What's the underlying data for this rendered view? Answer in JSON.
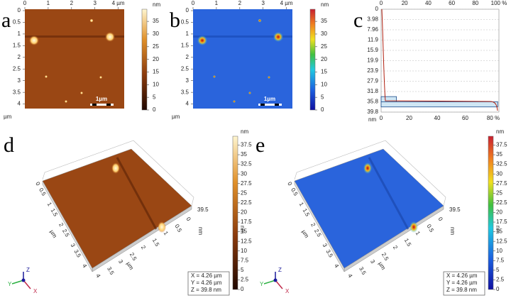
{
  "panels": [
    {
      "label": "a",
      "kind": "map2d",
      "colormap": "copper",
      "top_ticks": [
        "0",
        "1",
        "2",
        "3",
        "4 µm"
      ],
      "left_ticks": [
        "0",
        "0.5",
        "1",
        "1.5",
        "2",
        "2.5",
        "3",
        "3.5",
        "4"
      ],
      "axis_unit": "µm",
      "scale_bar": "1µm",
      "colorbar_unit": "nm",
      "colorbar_ticks": [
        0,
        5,
        10,
        15,
        20,
        25,
        30,
        35
      ],
      "colorbar_range": [
        0,
        39.8
      ]
    },
    {
      "label": "b",
      "kind": "map2d",
      "colormap": "rainbow",
      "top_ticks": [
        "0",
        "1",
        "2",
        "3",
        "4 µm"
      ],
      "left_ticks": [
        "0",
        "0.5",
        "1",
        "1.5",
        "2",
        "2.5",
        "3",
        "3.5",
        "4"
      ],
      "axis_unit": "µm",
      "scale_bar": "1µm",
      "colorbar_unit": "nm",
      "colorbar_ticks": [
        0,
        5,
        10,
        15,
        20,
        25,
        30,
        35
      ],
      "colorbar_range": [
        0,
        39.8
      ]
    },
    {
      "label": "c",
      "kind": "histogram",
      "top_ticks": [
        "0",
        "20",
        "40",
        "60",
        "80",
        "100 %"
      ],
      "left_ticks": [
        "0",
        "3.98",
        "7.96",
        "11.9",
        "15.9",
        "19.9",
        "23.9",
        "27.9",
        "31.8",
        "35.8",
        "39.8"
      ],
      "bottom_ticks": [
        "0",
        "20",
        "40",
        "60",
        "80 %"
      ],
      "left_unit": "nm",
      "bins": [
        33.8,
        35.8,
        37.8
      ],
      "values": [
        13,
        99
      ],
      "height_range": [
        0,
        39.8
      ],
      "percent_range": [
        0,
        100
      ]
    },
    {
      "label": "d",
      "kind": "map3d",
      "colormap": "copper",
      "left_ticks": [
        "0",
        "0.5",
        "1",
        "1.5",
        "2",
        "2.5",
        "3",
        "3.5",
        "4"
      ],
      "bottom_ticks": [
        "4",
        "3.5",
        "3",
        "2.5",
        "2",
        "1.5",
        "1",
        "0.5",
        "0"
      ],
      "axis_unit": "µm",
      "z_tick": "39.5",
      "z_unit": "nm",
      "colorbar_unit": "nm",
      "colorbar_title": "nm",
      "colorbar_ticks": [
        0,
        2.5,
        5,
        7.5,
        10,
        12.5,
        15,
        17.5,
        20,
        22.5,
        25,
        27.5,
        30,
        32.5,
        35,
        37.5
      ],
      "colorbar_range": [
        0,
        39.8
      ],
      "info": [
        "X = 4.26 µm",
        "Y = 4.26 µm",
        "Z = 39.8 nm"
      ],
      "axes_labels": [
        "Z",
        "Y",
        "X"
      ]
    },
    {
      "label": "e",
      "kind": "map3d",
      "colormap": "rainbow",
      "left_ticks": [
        "0",
        "0.5",
        "1",
        "1.5",
        "2",
        "2.5",
        "3",
        "3.5",
        "4"
      ],
      "bottom_ticks": [
        "4",
        "3.5",
        "3",
        "2.5",
        "2",
        "1.5",
        "1",
        "0.5",
        "0"
      ],
      "axis_unit": "µm",
      "z_tick": "39.5",
      "z_unit": "nm",
      "colorbar_unit": "nm",
      "colorbar_title": "nm",
      "colorbar_ticks": [
        0,
        2.5,
        5,
        7.5,
        10,
        12.5,
        15,
        17.5,
        20,
        22.5,
        25,
        27.5,
        30,
        32.5,
        35,
        37.5
      ],
      "colorbar_range": [
        0,
        39.8
      ],
      "info": [
        "X = 4.26 µm",
        "Y = 4.26 µm",
        "Z = 39.8 nm"
      ],
      "axes_labels": [
        "Z",
        "Y",
        "X"
      ]
    }
  ]
}
